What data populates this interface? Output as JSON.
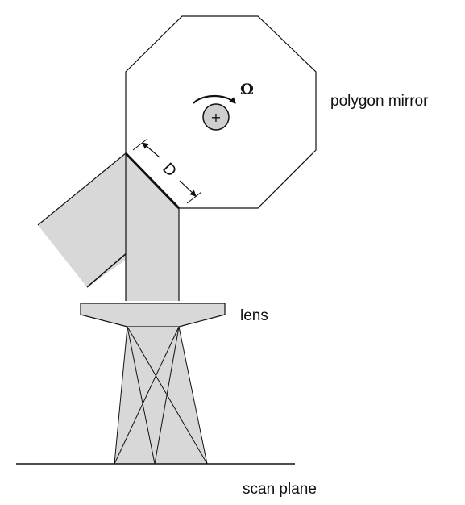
{
  "labels": {
    "mirror": "polygon mirror",
    "omega": "Ω",
    "d": "D",
    "plus": "+",
    "lens": "lens",
    "scan_plane": "scan plane"
  },
  "colors": {
    "beam_fill": "#d8d8d8",
    "hub_fill": "#cfcfcf",
    "line": "#111111"
  }
}
